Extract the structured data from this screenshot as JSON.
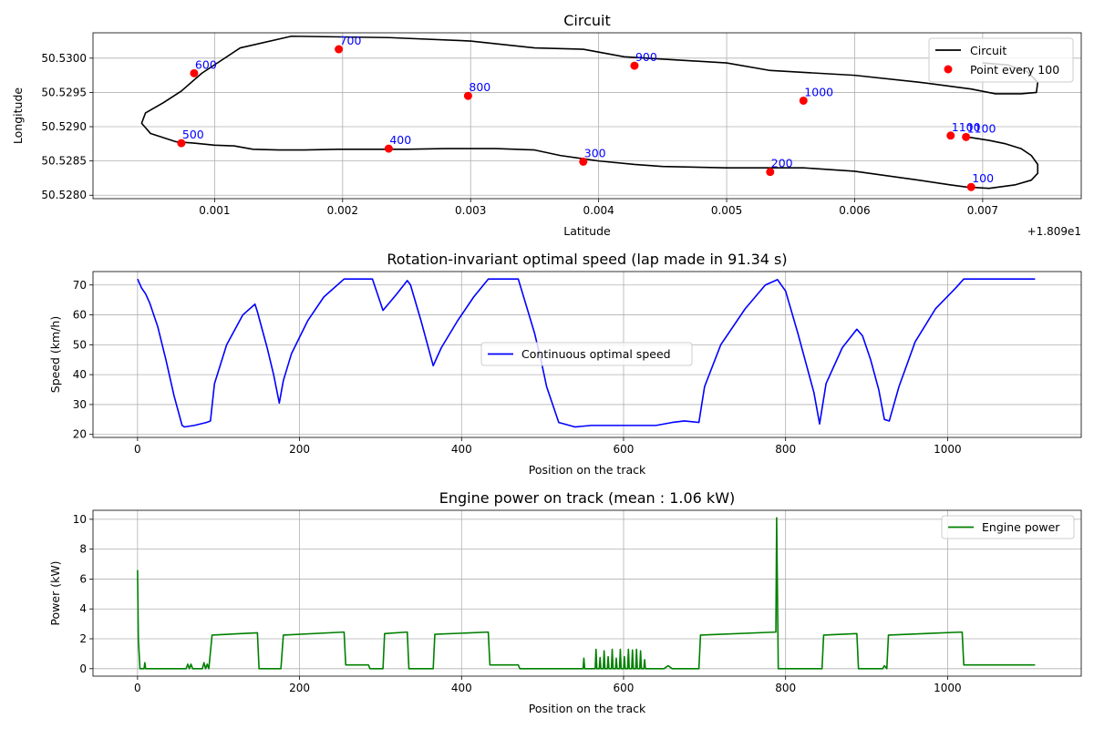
{
  "chart_data": [
    {
      "type": "line",
      "title": "Circuit",
      "xlabel": "Latitude",
      "ylabel": "Longitude",
      "x_offset_label": "+1.809e1",
      "xlim": [
        5e-05,
        0.00777
      ],
      "ylim": [
        50.52795,
        50.53037
      ],
      "x_ticks": [
        0.001,
        0.002,
        0.003,
        0.004,
        0.005,
        0.006,
        0.007
      ],
      "x_tick_labels": [
        "0.001",
        "0.002",
        "0.003",
        "0.004",
        "0.005",
        "0.006",
        "0.007"
      ],
      "y_ticks": [
        50.528,
        50.5285,
        50.529,
        50.5295,
        50.53
      ],
      "y_tick_labels": [
        "50.5280",
        "50.5285",
        "50.5290",
        "50.5295",
        "50.5300"
      ],
      "grid": true,
      "legend_position": "top-right",
      "legend": [
        "Circuit",
        "Point every 100"
      ],
      "series": [
        {
          "name": "Circuit",
          "color": "#000000",
          "x": [
            0.00688,
            0.00705,
            0.00718,
            0.0073,
            0.00738,
            0.00743,
            0.00743,
            0.00738,
            0.00725,
            0.00705,
            0.00687,
            0.00675,
            0.0065,
            0.006,
            0.0056,
            0.005,
            0.0045,
            0.00428,
            0.004,
            0.0037,
            0.0035,
            0.0032,
            0.003,
            0.0028,
            0.0025,
            0.00197,
            0.0017,
            0.0015,
            0.0013,
            0.00115,
            0.001,
            0.00084,
            0.0007,
            0.0005,
            0.00043,
            0.00046,
            0.0006,
            0.00074,
            0.0009,
            0.0012,
            0.0016,
            0.00236,
            0.003,
            0.0035,
            0.00388,
            0.0042,
            0.005,
            0.00534,
            0.006,
            0.0065,
            0.00691,
            0.0071,
            0.0073,
            0.00742,
            0.00743,
            0.00735,
            0.0072,
            0.007
          ],
          "y": [
            50.52885,
            50.5288,
            50.52875,
            50.52868,
            50.52858,
            50.52845,
            50.52832,
            50.52822,
            50.52815,
            50.5281,
            50.52812,
            50.52815,
            50.52822,
            50.52835,
            50.5284,
            50.5284,
            50.52842,
            50.52845,
            50.5285,
            50.52858,
            50.52866,
            50.52868,
            50.52868,
            50.52868,
            50.52867,
            50.52867,
            50.52866,
            50.52866,
            50.52867,
            50.52872,
            50.52873,
            50.52876,
            50.52878,
            50.5289,
            50.52905,
            50.5292,
            50.52935,
            50.52952,
            50.52978,
            50.53015,
            50.53032,
            50.5303,
            50.53025,
            50.53015,
            50.53013,
            50.53002,
            50.52993,
            50.52982,
            50.52975,
            50.52965,
            50.52955,
            50.52948,
            50.52948,
            50.5295,
            50.52965,
            50.5298,
            50.5299,
            50.52993
          ]
        },
        {
          "name": "Point every 100",
          "color": "#ff0000",
          "x": [
            0.00691,
            0.00534,
            0.00388,
            0.00236,
            0.00074,
            0.00084,
            0.00197,
            0.00298,
            0.00428,
            0.0056,
            0.00675,
            0.00687
          ],
          "y": [
            50.52812,
            50.52834,
            50.52849,
            50.52868,
            50.52876,
            50.52978,
            50.53013,
            50.52945,
            50.52989,
            50.52938,
            50.52887,
            50.52885
          ],
          "labels": [
            "100",
            "200",
            "300",
            "400",
            "500",
            "600",
            "700",
            "800",
            "900",
            "1000",
            "1100",
            "1100"
          ]
        }
      ]
    },
    {
      "type": "line",
      "title": "Rotation-invariant optimal speed (lap made in 91.34 s)",
      "xlabel": "Position on the track",
      "ylabel": "Speed (km/h)",
      "xlim": [
        -55,
        1165
      ],
      "ylim": [
        19,
        74.5
      ],
      "x_ticks": [
        0,
        200,
        400,
        600,
        800,
        1000
      ],
      "x_tick_labels": [
        "0",
        "200",
        "400",
        "600",
        "800",
        "1000"
      ],
      "y_ticks": [
        20,
        30,
        40,
        50,
        60,
        70
      ],
      "y_tick_labels": [
        "20",
        "30",
        "40",
        "50",
        "60",
        "70"
      ],
      "grid": true,
      "legend_position": "center",
      "legend": [
        "Continuous optimal speed"
      ],
      "series": [
        {
          "name": "Continuous optimal speed",
          "color": "#0000ff",
          "x": [
            0,
            5,
            10,
            15,
            25,
            35,
            45,
            55,
            58,
            70,
            85,
            90,
            95,
            110,
            130,
            145,
            148,
            160,
            168,
            175,
            180,
            190,
            210,
            230,
            255,
            290,
            303,
            320,
            333,
            337,
            350,
            365,
            375,
            395,
            415,
            433,
            470,
            490,
            498,
            505,
            520,
            540,
            560,
            580,
            600,
            620,
            640,
            660,
            675,
            693,
            700,
            720,
            750,
            775,
            790,
            800,
            815,
            835,
            842,
            850,
            870,
            888,
            895,
            905,
            915,
            922,
            928,
            940,
            960,
            985,
            1010,
            1020,
            1050,
            1108
          ],
          "y": [
            72,
            69,
            67,
            64,
            56,
            45,
            33,
            23,
            22.5,
            23,
            24,
            24.5,
            37,
            50,
            60,
            63.6,
            61,
            49,
            40,
            30.5,
            38,
            47,
            58,
            66,
            72,
            72,
            61.5,
            67,
            71.5,
            70,
            58,
            43,
            49,
            58,
            66,
            72,
            72,
            54,
            45,
            36,
            24,
            22.5,
            23,
            23,
            23,
            23,
            23,
            24,
            24.5,
            24,
            36,
            50,
            62,
            70,
            71.8,
            68,
            54,
            34,
            23.5,
            37,
            49,
            55.2,
            53,
            45,
            35,
            25,
            24.5,
            36,
            51,
            62,
            69,
            72,
            72,
            72
          ]
        }
      ]
    },
    {
      "type": "line",
      "title": "Engine power on track (mean : 1.06 kW)",
      "xlabel": "Position on the track",
      "ylabel": "Power (kW)",
      "xlim": [
        -55,
        1165
      ],
      "ylim": [
        -0.5,
        10.6
      ],
      "x_ticks": [
        0,
        200,
        400,
        600,
        800,
        1000
      ],
      "x_tick_labels": [
        "0",
        "200",
        "400",
        "600",
        "800",
        "1000"
      ],
      "y_ticks": [
        0,
        2,
        4,
        6,
        8,
        10
      ],
      "y_tick_labels": [
        "0",
        "2",
        "4",
        "6",
        "8",
        "10"
      ],
      "grid": true,
      "legend_position": "top-right",
      "legend": [
        "Engine power"
      ],
      "series": [
        {
          "name": "Engine power",
          "color": "#008000",
          "x": [
            0,
            1,
            3,
            8,
            9,
            10,
            15,
            60,
            62,
            64,
            66,
            68,
            80,
            82,
            84,
            86,
            88,
            92,
            148,
            150,
            177,
            180,
            255,
            257,
            285,
            287,
            303,
            305,
            333,
            335,
            365,
            367,
            433,
            435,
            470,
            472,
            540,
            550,
            551,
            552,
            553,
            560,
            565,
            566,
            567,
            570,
            571,
            572,
            575,
            576,
            577,
            580,
            581,
            582,
            585,
            586,
            587,
            590,
            591,
            592,
            595,
            596,
            597,
            600,
            601,
            602,
            605,
            606,
            607,
            610,
            611,
            612,
            615,
            616,
            617,
            620,
            621,
            622,
            625,
            626,
            627,
            650,
            655,
            660,
            693,
            695,
            788,
            789,
            790,
            791,
            845,
            847,
            888,
            890,
            920,
            922,
            925,
            927,
            1018,
            1020,
            1108
          ],
          "y": [
            6.6,
            2.0,
            0.0,
            0.0,
            0.4,
            0.0,
            0.0,
            0.0,
            0.3,
            0.0,
            0.3,
            0.0,
            0.0,
            0.4,
            0.0,
            0.3,
            0.0,
            2.25,
            2.4,
            0.0,
            0.0,
            2.25,
            2.45,
            0.25,
            0.25,
            0.0,
            0.0,
            2.35,
            2.45,
            0.0,
            0.0,
            2.3,
            2.45,
            0.25,
            0.25,
            0.0,
            0.0,
            0.0,
            0.7,
            0.0,
            0.0,
            0.0,
            0.0,
            1.3,
            0.0,
            0.0,
            0.75,
            0.0,
            0.0,
            1.2,
            0.0,
            0.0,
            0.8,
            0.0,
            0.0,
            1.3,
            0.0,
            0.0,
            0.7,
            0.0,
            0.0,
            1.3,
            0.0,
            0.0,
            0.8,
            0.0,
            0.0,
            1.3,
            0.0,
            0.0,
            1.25,
            0.0,
            0.0,
            1.3,
            0.0,
            0.0,
            1.2,
            0.0,
            0.0,
            0.6,
            0.0,
            0.0,
            0.2,
            0.0,
            0.0,
            2.25,
            2.45,
            10.1,
            5.0,
            0.0,
            0.0,
            2.25,
            2.35,
            0.0,
            0.0,
            0.2,
            0.0,
            2.25,
            2.45,
            0.25,
            0.25
          ]
        }
      ]
    }
  ]
}
